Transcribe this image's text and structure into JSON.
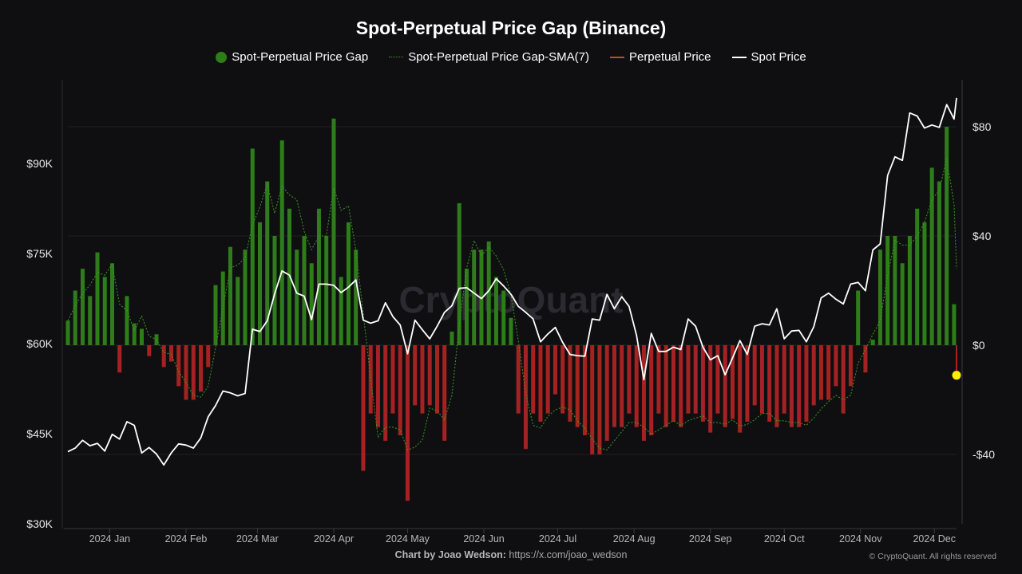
{
  "chart_data": {
    "type": "bar+line",
    "title": "Spot-Perpetual Price Gap (Binance)",
    "legend": [
      {
        "name": "Spot-Perpetual Price Gap",
        "color": "#2e7d1a",
        "marker": "dot"
      },
      {
        "name": "Spot-Perpetual Price Gap-SMA(7)",
        "color": "#3a9a22",
        "marker": "dotted-line"
      },
      {
        "name": "Perpetual Price",
        "color": "#c0501a",
        "marker": "line"
      },
      {
        "name": "Spot Price",
        "color": "#ffffff",
        "marker": "line"
      }
    ],
    "legend_position": "top",
    "colors": {
      "positive": "#2e7d1a",
      "negative": "#a52222",
      "spot": "#ffffff",
      "sma": "#3a9a22",
      "last_marker": "#ffee00"
    },
    "left_axis": {
      "ticks": [
        "$30K",
        "$45K",
        "$60K",
        "$75K",
        "$90K"
      ],
      "tick_values": [
        30000,
        45000,
        60000,
        75000,
        90000
      ],
      "range": [
        30000,
        104000
      ]
    },
    "right_axis": {
      "ticks": [
        "-$40",
        "$0",
        "$40",
        "$80"
      ],
      "tick_values": [
        -40,
        0,
        40,
        80
      ],
      "range": [
        -65,
        97
      ]
    },
    "x_ticks": [
      "2024 Jan",
      "2024 Feb",
      "2024 Mar",
      "2024 Apr",
      "2024 May",
      "2024 Jun",
      "2024 Jul",
      "2024 Aug",
      "2024 Sep",
      "2024 Oct",
      "2024 Nov",
      "2024 Dec"
    ],
    "x_tick_dates": [
      "2024-01-01",
      "2024-02-01",
      "2024-03-01",
      "2024-04-01",
      "2024-05-01",
      "2024-06-01",
      "2024-07-01",
      "2024-08-01",
      "2024-09-01",
      "2024-10-01",
      "2024-11-01",
      "2024-12-01"
    ],
    "grid": true,
    "watermark": "CryptoQuant",
    "dates": [
      "2023-12-15",
      "2023-12-18",
      "2023-12-21",
      "2023-12-24",
      "2023-12-27",
      "2023-12-30",
      "2024-01-02",
      "2024-01-05",
      "2024-01-08",
      "2024-01-11",
      "2024-01-14",
      "2024-01-17",
      "2024-01-20",
      "2024-01-23",
      "2024-01-26",
      "2024-01-29",
      "2024-02-01",
      "2024-02-04",
      "2024-02-07",
      "2024-02-10",
      "2024-02-13",
      "2024-02-16",
      "2024-02-19",
      "2024-02-22",
      "2024-02-25",
      "2024-02-28",
      "2024-03-02",
      "2024-03-05",
      "2024-03-08",
      "2024-03-11",
      "2024-03-14",
      "2024-03-17",
      "2024-03-20",
      "2024-03-23",
      "2024-03-26",
      "2024-03-29",
      "2024-04-01",
      "2024-04-04",
      "2024-04-07",
      "2024-04-10",
      "2024-04-13",
      "2024-04-16",
      "2024-04-19",
      "2024-04-22",
      "2024-04-25",
      "2024-04-28",
      "2024-05-01",
      "2024-05-04",
      "2024-05-07",
      "2024-05-10",
      "2024-05-13",
      "2024-05-16",
      "2024-05-19",
      "2024-05-22",
      "2024-05-25",
      "2024-05-28",
      "2024-05-31",
      "2024-06-03",
      "2024-06-06",
      "2024-06-09",
      "2024-06-12",
      "2024-06-15",
      "2024-06-18",
      "2024-06-21",
      "2024-06-24",
      "2024-06-27",
      "2024-06-30",
      "2024-07-03",
      "2024-07-06",
      "2024-07-09",
      "2024-07-12",
      "2024-07-15",
      "2024-07-18",
      "2024-07-21",
      "2024-07-24",
      "2024-07-27",
      "2024-07-30",
      "2024-08-02",
      "2024-08-05",
      "2024-08-08",
      "2024-08-11",
      "2024-08-14",
      "2024-08-17",
      "2024-08-20",
      "2024-08-23",
      "2024-08-26",
      "2024-08-29",
      "2024-09-01",
      "2024-09-04",
      "2024-09-07",
      "2024-09-10",
      "2024-09-13",
      "2024-09-16",
      "2024-09-19",
      "2024-09-22",
      "2024-09-25",
      "2024-09-28",
      "2024-10-01",
      "2024-10-04",
      "2024-10-07",
      "2024-10-10",
      "2024-10-13",
      "2024-10-16",
      "2024-10-19",
      "2024-10-22",
      "2024-10-25",
      "2024-10-28",
      "2024-10-31",
      "2024-11-03",
      "2024-11-06",
      "2024-11-09",
      "2024-11-12",
      "2024-11-15",
      "2024-11-18",
      "2024-11-21",
      "2024-11-24",
      "2024-11-27",
      "2024-11-30",
      "2024-12-03",
      "2024-12-06",
      "2024-12-09",
      "2024-12-10"
    ],
    "spot_price": [
      42000,
      42600,
      43900,
      43000,
      43400,
      42100,
      44900,
      44100,
      47000,
      46400,
      41800,
      42700,
      41600,
      39800,
      41800,
      43300,
      43100,
      42600,
      44300,
      47800,
      49700,
      52100,
      51800,
      51300,
      51700,
      62400,
      62000,
      63800,
      68300,
      72100,
      71400,
      68400,
      67900,
      64000,
      69900,
      69900,
      69700,
      68500,
      69400,
      70600,
      63900,
      63400,
      63800,
      66800,
      64500,
      63100,
      58300,
      63900,
      62300,
      60800,
      62900,
      65200,
      66300,
      69200,
      69300,
      68400,
      67500,
      68800,
      70800,
      69600,
      68200,
      66200,
      65200,
      64100,
      60300,
      61600,
      62700,
      60200,
      58200,
      58000,
      57900,
      64100,
      63900,
      68200,
      65800,
      67800,
      66200,
      61400,
      54000,
      61700,
      58700,
      58700,
      59400,
      59000,
      64100,
      62900,
      59400,
      57300,
      58000,
      54800,
      57600,
      60500,
      58200,
      62900,
      63300,
      63100,
      65800,
      60800,
      62100,
      62200,
      60300,
      62800,
      67600,
      68400,
      67400,
      66600,
      69900,
      70200,
      68800,
      75600,
      76600,
      88000,
      91100,
      90500,
      98400,
      97900,
      95900,
      96400,
      96000,
      99800,
      97400,
      100900
    ],
    "price_gap": [
      9,
      20,
      28,
      18,
      34,
      25,
      30,
      -10,
      18,
      8,
      6,
      -4,
      4,
      -8,
      -6,
      -15,
      -20,
      -20,
      -17,
      -8,
      22,
      27,
      36,
      25,
      35,
      72,
      45,
      60,
      40,
      75,
      50,
      35,
      40,
      30,
      50,
      40,
      83,
      25,
      45,
      35,
      -46,
      -25,
      -30,
      -35,
      -25,
      -33,
      -57,
      -22,
      -25,
      -22,
      -25,
      -35,
      5,
      52,
      28,
      35,
      35,
      38,
      25,
      20,
      10,
      -25,
      -38,
      -25,
      -28,
      -25,
      -18,
      -25,
      -28,
      -30,
      -33,
      -40,
      -40,
      -35,
      -30,
      -30,
      -25,
      -30,
      -35,
      -33,
      -25,
      -30,
      -28,
      -30,
      -25,
      -25,
      -28,
      -32,
      -25,
      -30,
      -27,
      -32,
      -28,
      -22,
      -25,
      -28,
      -30,
      -25,
      -30,
      -30,
      -28,
      -22,
      -20,
      -20,
      -15,
      -25,
      -15,
      20,
      -10,
      2,
      35,
      40,
      40,
      30,
      40,
      50,
      45,
      65,
      60,
      80,
      15,
      -11
    ]
  },
  "footer": {
    "credit_label": "Chart by Joao Wedson:",
    "credit_link": "https://x.com/joao_wedson",
    "copyright": "© CryptoQuant. All rights reserved"
  }
}
